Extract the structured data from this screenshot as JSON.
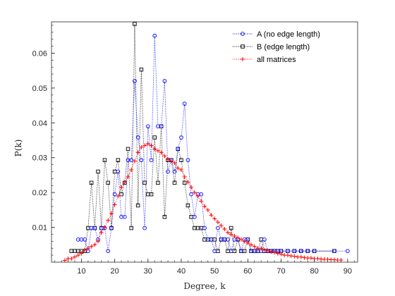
{
  "chart_data": {
    "type": "line",
    "xlabel": "Degree, k",
    "ylabel": "P(k)",
    "xlim": [
      1,
      93
    ],
    "ylim": [
      0,
      0.069
    ],
    "xticks": [
      10,
      20,
      30,
      40,
      50,
      60,
      70,
      80,
      90
    ],
    "yticks": [
      0.01,
      0.02,
      0.03,
      0.04,
      0.05,
      0.06
    ],
    "ytick_labels": [
      "0.01",
      "0.02",
      "0.03",
      "0.04",
      "0.05",
      "0.06"
    ],
    "legend_position": "top-right",
    "series": [
      {
        "name": "A (no edge length)",
        "color": "#0000ff",
        "marker": "circle",
        "line": "dotted",
        "x": [
          9,
          10,
          11,
          12,
          13,
          14,
          15,
          16,
          17,
          18,
          19,
          20,
          21,
          22,
          23,
          24,
          25,
          26,
          27,
          28,
          29,
          30,
          31,
          32,
          33,
          34,
          35,
          36,
          37,
          38,
          39,
          40,
          41,
          42,
          43,
          44,
          45,
          46,
          47,
          48,
          49,
          50,
          51,
          52,
          53,
          54,
          55,
          56,
          57,
          58,
          59,
          60,
          61,
          62,
          63,
          64,
          65,
          66,
          67,
          68,
          69,
          70,
          72,
          74,
          76,
          78,
          80,
          86,
          90
        ],
        "y": [
          0.0065,
          0.0065,
          0.0065,
          0.0032,
          0.0098,
          0.0098,
          0.0065,
          0.0098,
          0.0098,
          0.0032,
          0.0098,
          0.0195,
          0.026,
          0.013,
          0.013,
          0.0293,
          0.0293,
          0.052,
          0.0358,
          0.0293,
          0.0098,
          0.039,
          0.0293,
          0.065,
          0.039,
          0.039,
          0.052,
          0.026,
          0.0293,
          0.026,
          0.0325,
          0.0358,
          0.0455,
          0.0293,
          0.0195,
          0.013,
          0.0195,
          0.0195,
          0.0098,
          0.0065,
          0.0065,
          0.0032,
          0.0098,
          0.0065,
          0.0065,
          0.0065,
          0.0032,
          0.0065,
          0.0065,
          0.0032,
          0.0065,
          0.0065,
          0.0032,
          0.0032,
          0.0032,
          0.0032,
          0.0065,
          0.0032,
          0.0032,
          0.0032,
          0.0032,
          0.0032,
          0.0032,
          0.0032,
          0.0032,
          0.0032,
          0.0032,
          0.0032,
          0.0032
        ]
      },
      {
        "name": "B (edge length)",
        "color": "#000000",
        "marker": "square",
        "line": "dotted",
        "x": [
          7,
          8,
          9,
          10,
          11,
          12,
          13,
          14,
          15,
          16,
          17,
          18,
          19,
          20,
          21,
          22,
          23,
          24,
          25,
          26,
          27,
          28,
          29,
          30,
          31,
          32,
          33,
          34,
          35,
          36,
          37,
          38,
          39,
          40,
          41,
          42,
          43,
          44,
          45,
          46,
          47,
          48,
          49,
          50,
          51,
          52,
          53,
          54,
          55,
          56,
          57,
          58,
          59,
          60,
          61,
          62,
          63,
          64,
          65,
          66,
          67,
          68,
          69,
          70,
          72,
          74,
          76,
          78,
          80,
          86
        ],
        "y": [
          0.0032,
          0.0032,
          0.0032,
          0.0032,
          0.0032,
          0.0098,
          0.0228,
          0.0098,
          0.026,
          0.0098,
          0.0293,
          0.0228,
          0.0098,
          0.026,
          0.0293,
          0.0195,
          0.0228,
          0.0325,
          0.0098,
          0.0684,
          0.0163,
          0.0553,
          0.0228,
          0.0195,
          0.0195,
          0.0358,
          0.0228,
          0.039,
          0.013,
          0.0293,
          0.0293,
          0.0228,
          0.0325,
          0.0293,
          0.0228,
          0.0163,
          0.013,
          0.0098,
          0.0098,
          0.0098,
          0.0065,
          0.0065,
          0.0065,
          0.0065,
          0.0032,
          0.0065,
          0.0065,
          0.0032,
          0.0098,
          0.0032,
          0.0065,
          0.0032,
          0.0032,
          0.0065,
          0.0032,
          0.0032,
          0.0032,
          0.0065,
          0.0032,
          0.0032,
          0.0032,
          0.0032,
          0.0032,
          0.0032,
          0.0032,
          0.0032,
          0.0032,
          0.0032,
          0.0032,
          0.0032
        ]
      },
      {
        "name": "all matrices",
        "color": "#ff0000",
        "marker": "plus",
        "line": "dotted",
        "x": [
          5,
          6,
          7,
          8,
          9,
          10,
          11,
          12,
          13,
          14,
          15,
          16,
          17,
          18,
          19,
          20,
          21,
          22,
          23,
          24,
          25,
          26,
          27,
          28,
          29,
          30,
          31,
          32,
          33,
          34,
          35,
          36,
          37,
          38,
          39,
          40,
          41,
          42,
          43,
          44,
          45,
          46,
          47,
          48,
          49,
          50,
          51,
          52,
          53,
          54,
          55,
          56,
          57,
          58,
          59,
          60,
          61,
          62,
          63,
          64,
          65,
          66,
          67,
          68,
          69,
          70,
          71,
          72,
          73,
          74,
          75,
          76,
          77,
          78,
          79,
          80,
          81,
          82,
          83,
          84,
          85,
          86,
          87,
          88
        ],
        "y": [
          0.0005,
          0.001,
          0.001,
          0.0015,
          0.002,
          0.0025,
          0.0035,
          0.004,
          0.0045,
          0.005,
          0.006,
          0.0085,
          0.01,
          0.012,
          0.014,
          0.0165,
          0.019,
          0.0215,
          0.023,
          0.0245,
          0.0265,
          0.029,
          0.0315,
          0.033,
          0.0335,
          0.034,
          0.0335,
          0.0325,
          0.032,
          0.0315,
          0.0305,
          0.0295,
          0.029,
          0.0285,
          0.027,
          0.0265,
          0.0245,
          0.023,
          0.0215,
          0.02,
          0.019,
          0.0175,
          0.016,
          0.015,
          0.0135,
          0.0125,
          0.0115,
          0.0105,
          0.0095,
          0.0085,
          0.008,
          0.0075,
          0.007,
          0.0065,
          0.006,
          0.0055,
          0.005,
          0.0045,
          0.004,
          0.004,
          0.0035,
          0.0033,
          0.003,
          0.0028,
          0.0025,
          0.0023,
          0.002,
          0.002,
          0.0018,
          0.0017,
          0.0015,
          0.0015,
          0.0013,
          0.0012,
          0.0012,
          0.001,
          0.001,
          0.0009,
          0.0008,
          0.0008,
          0.0007,
          0.0007,
          0.0006,
          0.0006
        ]
      }
    ]
  }
}
